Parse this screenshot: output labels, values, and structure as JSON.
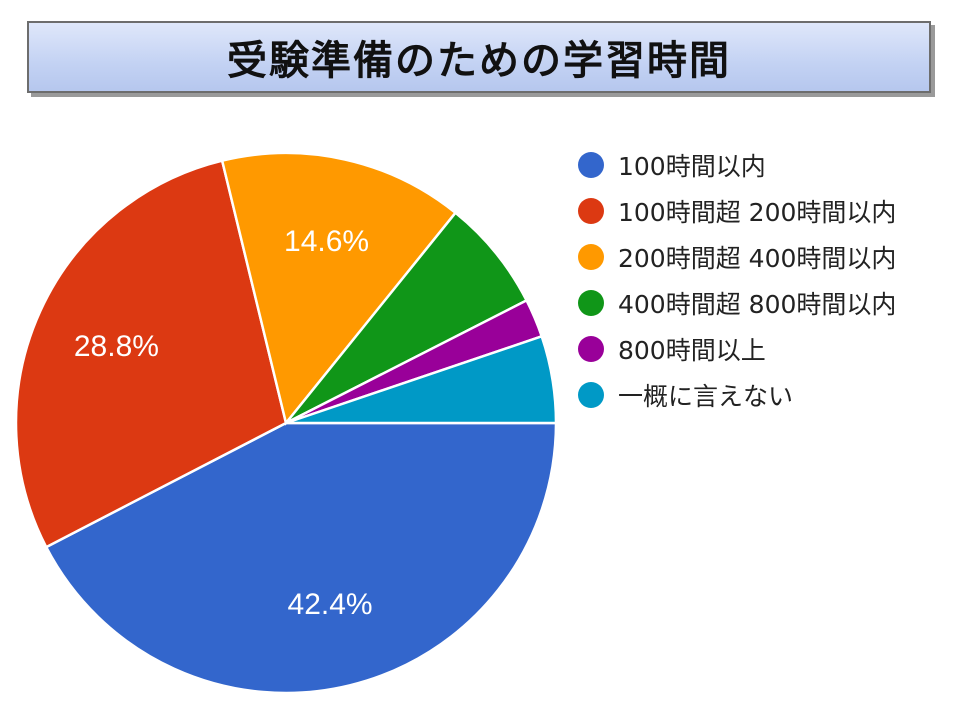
{
  "title": "受験準備のための学習時間",
  "chart_data": {
    "type": "pie",
    "title": "受験準備のための学習時間",
    "legend_position": "right",
    "slices": [
      {
        "label": "100時間以内",
        "value": 42.4,
        "display": "42.4%",
        "color": "#3366cc"
      },
      {
        "label": "100時間超 200時間以内",
        "value": 28.8,
        "display": "28.8%",
        "color": "#dc3912"
      },
      {
        "label": "200時間超 400時間以内",
        "value": 14.6,
        "display": "14.6%",
        "color": "#ff9900"
      },
      {
        "label": "400時間超 800時間以内",
        "value": 6.7,
        "display": "",
        "color": "#109618"
      },
      {
        "label": "800時間以上",
        "value": 2.3,
        "display": "",
        "color": "#990099"
      },
      {
        "label": "一概に言えない",
        "value": 5.2,
        "display": "",
        "color": "#0099c6"
      }
    ]
  }
}
